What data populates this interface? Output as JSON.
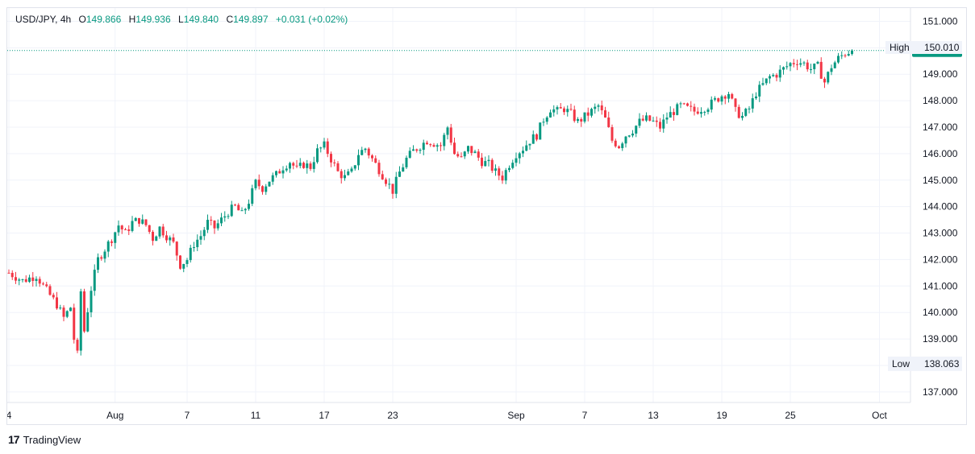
{
  "legend": {
    "symbol": "USD/JPY",
    "interval": "4h",
    "open_label": "O",
    "open": "149.866",
    "high_label": "H",
    "high": "149.936",
    "low_label": "L",
    "low": "149.840",
    "close_label": "C",
    "close": "149.897",
    "change": "+0.031 (+0.02%)"
  },
  "footer": {
    "logo_mark": "17",
    "brand": "TradingView"
  },
  "markers": {
    "high_label": "High",
    "high_value": "150.010",
    "low_label": "Low",
    "low_value": "138.063",
    "last_price": "149.897"
  },
  "colors": {
    "up": "#089981",
    "down": "#f23645",
    "grid": "#f0f3fa",
    "axis_text": "#131722",
    "price_line": "#089981"
  },
  "chart_data": {
    "type": "candlestick",
    "title": "USD/JPY, 4h",
    "ylim": [
      136.6,
      151.5
    ],
    "y_ticks": [
      "151.000",
      "150.000",
      "149.000",
      "148.000",
      "147.000",
      "146.000",
      "145.000",
      "144.000",
      "143.000",
      "142.000",
      "141.000",
      "140.000",
      "139.000",
      "138.000",
      "137.000"
    ],
    "x_ticks": [
      {
        "label": "4",
        "bar": 0
      },
      {
        "label": "Aug",
        "bar": 31
      },
      {
        "label": "7",
        "bar": 52
      },
      {
        "label": "11",
        "bar": 72
      },
      {
        "label": "17",
        "bar": 92
      },
      {
        "label": "23",
        "bar": 112
      },
      {
        "label": "Sep",
        "bar": 148
      },
      {
        "label": "7",
        "bar": 168
      },
      {
        "label": "13",
        "bar": 188
      },
      {
        "label": "19",
        "bar": 208
      },
      {
        "label": "25",
        "bar": 228
      },
      {
        "label": "Oct",
        "bar": 254
      }
    ],
    "close_path": [
      [
        0,
        141.5
      ],
      [
        4,
        141.2
      ],
      [
        8,
        141.4
      ],
      [
        10,
        141.0
      ],
      [
        14,
        140.3
      ],
      [
        16,
        139.8
      ],
      [
        18,
        140.2
      ],
      [
        19,
        139.0
      ],
      [
        20,
        138.4
      ],
      [
        21,
        140.8
      ],
      [
        22,
        139.3
      ],
      [
        24,
        140.9
      ],
      [
        26,
        142.0
      ],
      [
        28,
        142.4
      ],
      [
        30,
        142.8
      ],
      [
        32,
        143.3
      ],
      [
        34,
        143.0
      ],
      [
        36,
        143.4
      ],
      [
        38,
        143.5
      ],
      [
        40,
        143.3
      ],
      [
        42,
        142.8
      ],
      [
        44,
        143.2
      ],
      [
        46,
        142.9
      ],
      [
        48,
        142.6
      ],
      [
        50,
        141.8
      ],
      [
        52,
        142.0
      ],
      [
        54,
        142.6
      ],
      [
        56,
        142.9
      ],
      [
        58,
        143.4
      ],
      [
        60,
        143.2
      ],
      [
        62,
        143.5
      ],
      [
        64,
        143.8
      ],
      [
        66,
        144.0
      ],
      [
        68,
        143.7
      ],
      [
        70,
        144.2
      ],
      [
        72,
        144.9
      ],
      [
        74,
        144.7
      ],
      [
        76,
        145.0
      ],
      [
        78,
        145.2
      ],
      [
        80,
        145.5
      ],
      [
        82,
        145.7
      ],
      [
        84,
        145.4
      ],
      [
        86,
        145.6
      ],
      [
        88,
        145.5
      ],
      [
        90,
        146.1
      ],
      [
        92,
        146.3
      ],
      [
        94,
        145.8
      ],
      [
        96,
        145.3
      ],
      [
        98,
        145.1
      ],
      [
        100,
        145.3
      ],
      [
        102,
        146.0
      ],
      [
        104,
        146.2
      ],
      [
        106,
        145.8
      ],
      [
        108,
        145.4
      ],
      [
        110,
        145.0
      ],
      [
        112,
        144.6
      ],
      [
        114,
        145.3
      ],
      [
        116,
        145.8
      ],
      [
        118,
        146.1
      ],
      [
        120,
        146.3
      ],
      [
        122,
        146.5
      ],
      [
        124,
        146.4
      ],
      [
        126,
        146.3
      ],
      [
        128,
        147.0
      ],
      [
        130,
        146.0
      ],
      [
        132,
        145.8
      ],
      [
        134,
        146.2
      ],
      [
        136,
        146.0
      ],
      [
        138,
        145.7
      ],
      [
        140,
        145.6
      ],
      [
        142,
        145.3
      ],
      [
        144,
        145.1
      ],
      [
        146,
        145.6
      ],
      [
        148,
        146.0
      ],
      [
        150,
        146.2
      ],
      [
        152,
        146.5
      ],
      [
        154,
        146.7
      ],
      [
        156,
        147.3
      ],
      [
        158,
        147.7
      ],
      [
        160,
        147.6
      ],
      [
        162,
        147.7
      ],
      [
        164,
        147.5
      ],
      [
        166,
        147.2
      ],
      [
        168,
        147.4
      ],
      [
        170,
        147.6
      ],
      [
        172,
        147.8
      ],
      [
        174,
        147.3
      ],
      [
        176,
        146.5
      ],
      [
        178,
        146.3
      ],
      [
        180,
        146.7
      ],
      [
        182,
        146.9
      ],
      [
        184,
        147.2
      ],
      [
        186,
        147.3
      ],
      [
        188,
        147.2
      ],
      [
        190,
        147.0
      ],
      [
        192,
        147.4
      ],
      [
        194,
        147.6
      ],
      [
        196,
        147.8
      ],
      [
        198,
        147.7
      ],
      [
        200,
        147.6
      ],
      [
        202,
        147.7
      ],
      [
        204,
        147.8
      ],
      [
        206,
        148.0
      ],
      [
        208,
        148.2
      ],
      [
        210,
        148.3
      ],
      [
        212,
        147.6
      ],
      [
        214,
        147.4
      ],
      [
        216,
        147.7
      ],
      [
        218,
        148.3
      ],
      [
        220,
        148.6
      ],
      [
        222,
        148.9
      ],
      [
        224,
        149.0
      ],
      [
        226,
        149.2
      ],
      [
        228,
        149.4
      ],
      [
        230,
        149.5
      ],
      [
        232,
        149.4
      ],
      [
        234,
        149.2
      ],
      [
        236,
        149.3
      ],
      [
        238,
        148.7
      ],
      [
        240,
        149.3
      ],
      [
        242,
        149.6
      ],
      [
        244,
        149.8
      ],
      [
        246,
        149.9
      ]
    ],
    "n_bars": 247,
    "last_close": 149.897,
    "series_high": 150.01,
    "series_low": 138.063
  }
}
